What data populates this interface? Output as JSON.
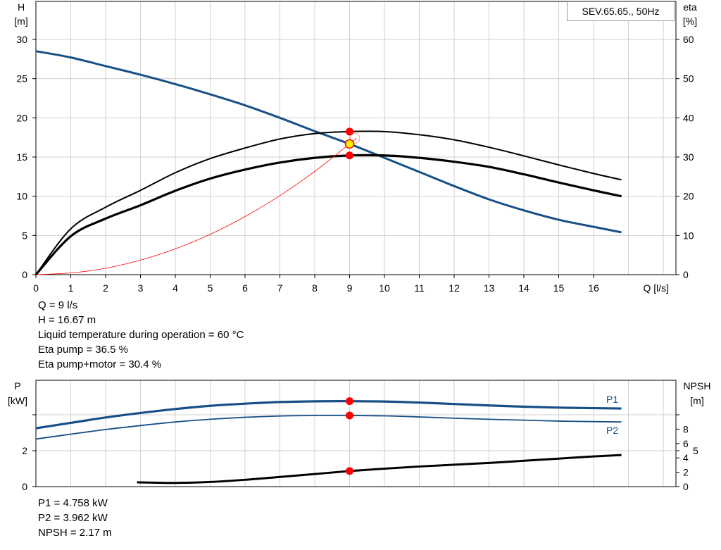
{
  "title": "SEV.65.65., 50Hz",
  "operating_point": [
    "Q = 9 l/s",
    "H = 16.67 m",
    "Liquid temperature during operation = 60 °C",
    "Eta pump = 36.5 %",
    "Eta pump+motor = 30.4 %"
  ],
  "power_readout": [
    "P1 = 4.758 kW",
    "P2 = 3.962 kW",
    "NPSH = 2.17 m"
  ],
  "colors": {
    "blue": "#174f87",
    "black": "#000000",
    "red": "#ff0000",
    "yellow": "#ffee00",
    "grid": "#d0d0d0"
  },
  "chart_data": [
    {
      "type": "line",
      "name": "head-efficiency",
      "xlabel": "Q [l/s]",
      "ylabel": [
        "H",
        "[m]"
      ],
      "y2label": [
        "eta",
        "[%]"
      ],
      "xlim": [
        0,
        18
      ],
      "xticks": [
        "0",
        "1",
        "2",
        "3",
        "4",
        "5",
        "6",
        "7",
        "8",
        "9",
        "10",
        "11",
        "12",
        "13",
        "14",
        "15",
        "16"
      ],
      "ylim": [
        0,
        30
      ],
      "yticks": [
        "0",
        "5",
        "10",
        "15",
        "20",
        "25",
        "30"
      ],
      "y2lim": [
        0,
        60
      ],
      "y2ticks": [
        "0",
        "10",
        "20",
        "30",
        "40",
        "50",
        "60"
      ],
      "grid": true,
      "series": [
        {
          "name": "H",
          "axis": "y",
          "color": "#174f87",
          "width": 3,
          "x": [
            0,
            1,
            2,
            3,
            4,
            5,
            6,
            7,
            8,
            9,
            10,
            11,
            12,
            13,
            14,
            15,
            16,
            16.8
          ],
          "y": [
            28.5,
            27.7,
            26.6,
            25.5,
            24.3,
            23,
            21.6,
            20,
            18.3,
            16.67,
            14.9,
            13.1,
            11.3,
            9.6,
            8.2,
            7,
            6.1,
            5.4
          ]
        },
        {
          "name": "Eta pump",
          "axis": "y2",
          "color": "#000000",
          "width": 2,
          "x": [
            0,
            1,
            2,
            3,
            4,
            5,
            6,
            7,
            8,
            9,
            10,
            11,
            12,
            13,
            14,
            15,
            16,
            16.8
          ],
          "y": [
            0,
            11.7,
            17.2,
            21.5,
            26,
            29.6,
            32.3,
            34.6,
            36,
            36.5,
            36.5,
            35.7,
            34.4,
            32.5,
            30.3,
            28,
            25.8,
            24.2
          ]
        },
        {
          "name": "Eta pump+motor",
          "axis": "y2",
          "color": "#000000",
          "width": 3.2,
          "x": [
            0,
            1,
            2,
            3,
            4,
            5,
            6,
            7,
            8,
            9,
            10,
            11,
            12,
            13,
            14,
            15,
            16,
            16.8
          ],
          "y": [
            0,
            9.8,
            14.3,
            17.7,
            21.4,
            24.5,
            26.8,
            28.6,
            29.8,
            30.4,
            30.4,
            29.8,
            28.8,
            27.5,
            25.6,
            23.5,
            21.5,
            20
          ]
        },
        {
          "name": "System curve",
          "axis": "y",
          "color": "#ff0000",
          "width": 0.8,
          "x": [
            0,
            1,
            2,
            3,
            4,
            5,
            6,
            7,
            8,
            9,
            9.2
          ],
          "y": [
            0,
            0.21,
            0.82,
            1.85,
            3.29,
            5.14,
            7.41,
            10.08,
            13.17,
            16.67,
            17.42
          ]
        }
      ],
      "points": [
        {
          "name": "eta-pump-point",
          "axis": "y2",
          "x": 9,
          "y": 36.5,
          "color": "#ff0000"
        },
        {
          "name": "eta-pump-motor-point",
          "axis": "y2",
          "x": 9,
          "y": 30.4,
          "color": "#ff0000"
        },
        {
          "name": "duty-point",
          "axis": "y",
          "x": 9,
          "y": 16.67,
          "color": "#ffee00"
        }
      ]
    },
    {
      "type": "line",
      "name": "power-npsh",
      "ylabel": [
        "P",
        "[kW]"
      ],
      "y2label": [
        "NPSH",
        "[m]"
      ],
      "xlim": [
        0,
        18
      ],
      "ylim": [
        0,
        5.9
      ],
      "yticks": [
        "0",
        "2",
        ""
      ],
      "ytick_values": [
        0,
        2,
        4
      ],
      "y2lim": [
        0,
        14.8
      ],
      "y2ticks": [
        "0",
        "2",
        "4",
        "5",
        "6",
        "8",
        ""
      ],
      "y2tick_values": [
        0,
        2,
        4,
        5,
        6,
        8,
        10
      ],
      "grid": true,
      "series": [
        {
          "name": "P1",
          "label": "P1",
          "axis": "y",
          "color": "#174f87",
          "width": 3.2,
          "x": [
            0,
            1,
            2,
            3,
            4,
            5,
            6,
            7,
            8,
            9,
            10,
            11,
            12,
            13,
            14,
            15,
            16,
            16.8
          ],
          "y": [
            3.25,
            3.55,
            3.85,
            4.1,
            4.32,
            4.5,
            4.62,
            4.71,
            4.75,
            4.758,
            4.74,
            4.68,
            4.6,
            4.52,
            4.45,
            4.4,
            4.37,
            4.35
          ]
        },
        {
          "name": "P2",
          "label": "P2",
          "axis": "y",
          "color": "#174f87",
          "width": 1.8,
          "x": [
            0,
            1,
            2,
            3,
            4,
            5,
            6,
            7,
            8,
            9,
            10,
            11,
            12,
            13,
            14,
            15,
            16,
            16.8
          ],
          "y": [
            2.65,
            2.92,
            3.18,
            3.4,
            3.6,
            3.75,
            3.86,
            3.93,
            3.96,
            3.962,
            3.94,
            3.88,
            3.81,
            3.75,
            3.7,
            3.65,
            3.62,
            3.6
          ]
        },
        {
          "name": "NPSH",
          "axis": "y2",
          "color": "#000000",
          "width": 3,
          "x": [
            2.9,
            4,
            5,
            6,
            7,
            8,
            9,
            10,
            11,
            12,
            13,
            14,
            15,
            16,
            16.8
          ],
          "y": [
            0.6,
            0.52,
            0.65,
            0.95,
            1.35,
            1.75,
            2.17,
            2.5,
            2.8,
            3.05,
            3.3,
            3.6,
            3.9,
            4.2,
            4.4
          ]
        }
      ],
      "points": [
        {
          "name": "p1-point",
          "axis": "y",
          "x": 9,
          "y": 4.758,
          "color": "#ff0000"
        },
        {
          "name": "p2-point",
          "axis": "y",
          "x": 9,
          "y": 3.962,
          "color": "#ff0000"
        },
        {
          "name": "npsh-point",
          "axis": "y2",
          "x": 9,
          "y": 2.17,
          "color": "#ff0000"
        }
      ]
    }
  ]
}
